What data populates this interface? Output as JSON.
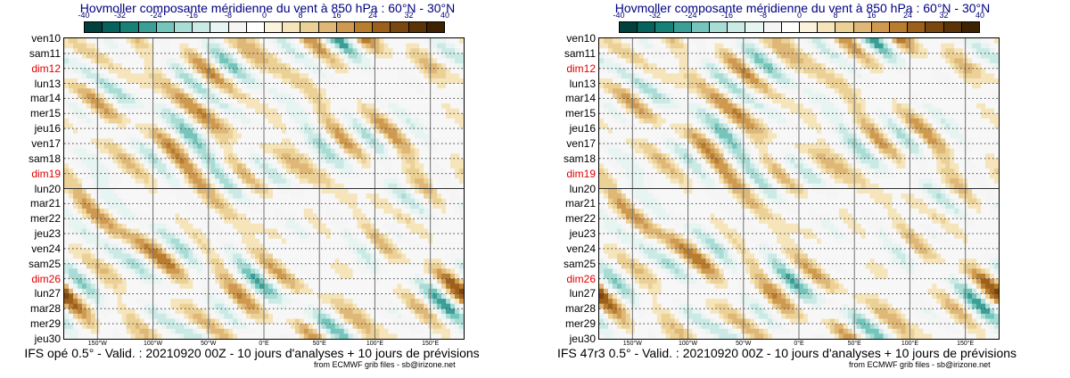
{
  "chart_data": [
    {
      "type": "heatmap",
      "title": "Hovmoller composante méridienne du vent à 850 hPa : 60°N - 30°N",
      "model_caption": "IFS opé 0.5° - Valid. : 20210920 00Z - 10 jours d'analyses + 10 jours de prévisions",
      "credit": "from ECMWF grib files - sb@irizone.net",
      "seed": 11,
      "colorbar_ticks": [
        "-40",
        "-32",
        "-24",
        "-16",
        "-8",
        "0",
        "8",
        "16",
        "24",
        "32",
        "40"
      ],
      "y_labels": [
        "ven10",
        "sam11",
        "dim12",
        "lun13",
        "mar14",
        "mer15",
        "jeu16",
        "ven17",
        "sam18",
        "dim19",
        "lun20",
        "mar21",
        "mer22",
        "jeu23",
        "ven24",
        "sam25",
        "dim26",
        "lun27",
        "mar28",
        "mer29",
        "jeu30"
      ],
      "sunday_labels": [
        "dim12",
        "dim19",
        "dim26"
      ],
      "analysis_boundary": "lun20",
      "x_labels": [
        "150°W",
        "100°W",
        "50°W",
        "0°E",
        "50°E",
        "100°E",
        "150°E"
      ],
      "x_range": [
        -180,
        180
      ],
      "x_ticks": [
        -150,
        -100,
        -50,
        0,
        50,
        100,
        150
      ]
    },
    {
      "type": "heatmap",
      "title": "Hovmoller composante méridienne du vent à 850 hPa : 60°N - 30°N",
      "model_caption": "IFS 47r3 0.5° - Valid. : 20210920 00Z - 10 jours d'analyses + 10 jours de prévisions",
      "credit": "from ECMWF grib files - sb@irizone.net",
      "seed": 11,
      "colorbar_ticks": [
        "-40",
        "-32",
        "-24",
        "-16",
        "-8",
        "0",
        "8",
        "16",
        "24",
        "32",
        "40"
      ],
      "y_labels": [
        "ven10",
        "sam11",
        "dim12",
        "lun13",
        "mar14",
        "mer15",
        "jeu16",
        "ven17",
        "sam18",
        "dim19",
        "lun20",
        "mar21",
        "mer22",
        "jeu23",
        "ven24",
        "sam25",
        "dim26",
        "lun27",
        "mar28",
        "mer29",
        "jeu30"
      ],
      "sunday_labels": [
        "dim12",
        "dim19",
        "dim26"
      ],
      "analysis_boundary": "lun20",
      "x_labels": [
        "150°W",
        "100°W",
        "50°W",
        "0°E",
        "50°E",
        "100°E",
        "150°E"
      ],
      "x_range": [
        -180,
        180
      ],
      "x_ticks": [
        -150,
        -100,
        -50,
        0,
        50,
        100,
        150
      ]
    }
  ],
  "colors": {
    "palette": [
      "#01403c",
      "#06625c",
      "#178178",
      "#3b9f97",
      "#76c5bc",
      "#a8dcd5",
      "#cbeae6",
      "#e6f4f2",
      "#f5f5f5",
      "#ffffff",
      "#fbf3dd",
      "#f6e5bb",
      "#ecd197",
      "#dfb776",
      "#cf9a50",
      "#b97d30",
      "#9d601c",
      "#7a4710",
      "#5b3308",
      "#3e2204"
    ],
    "title": "#000080",
    "sunday": "#e00000"
  }
}
